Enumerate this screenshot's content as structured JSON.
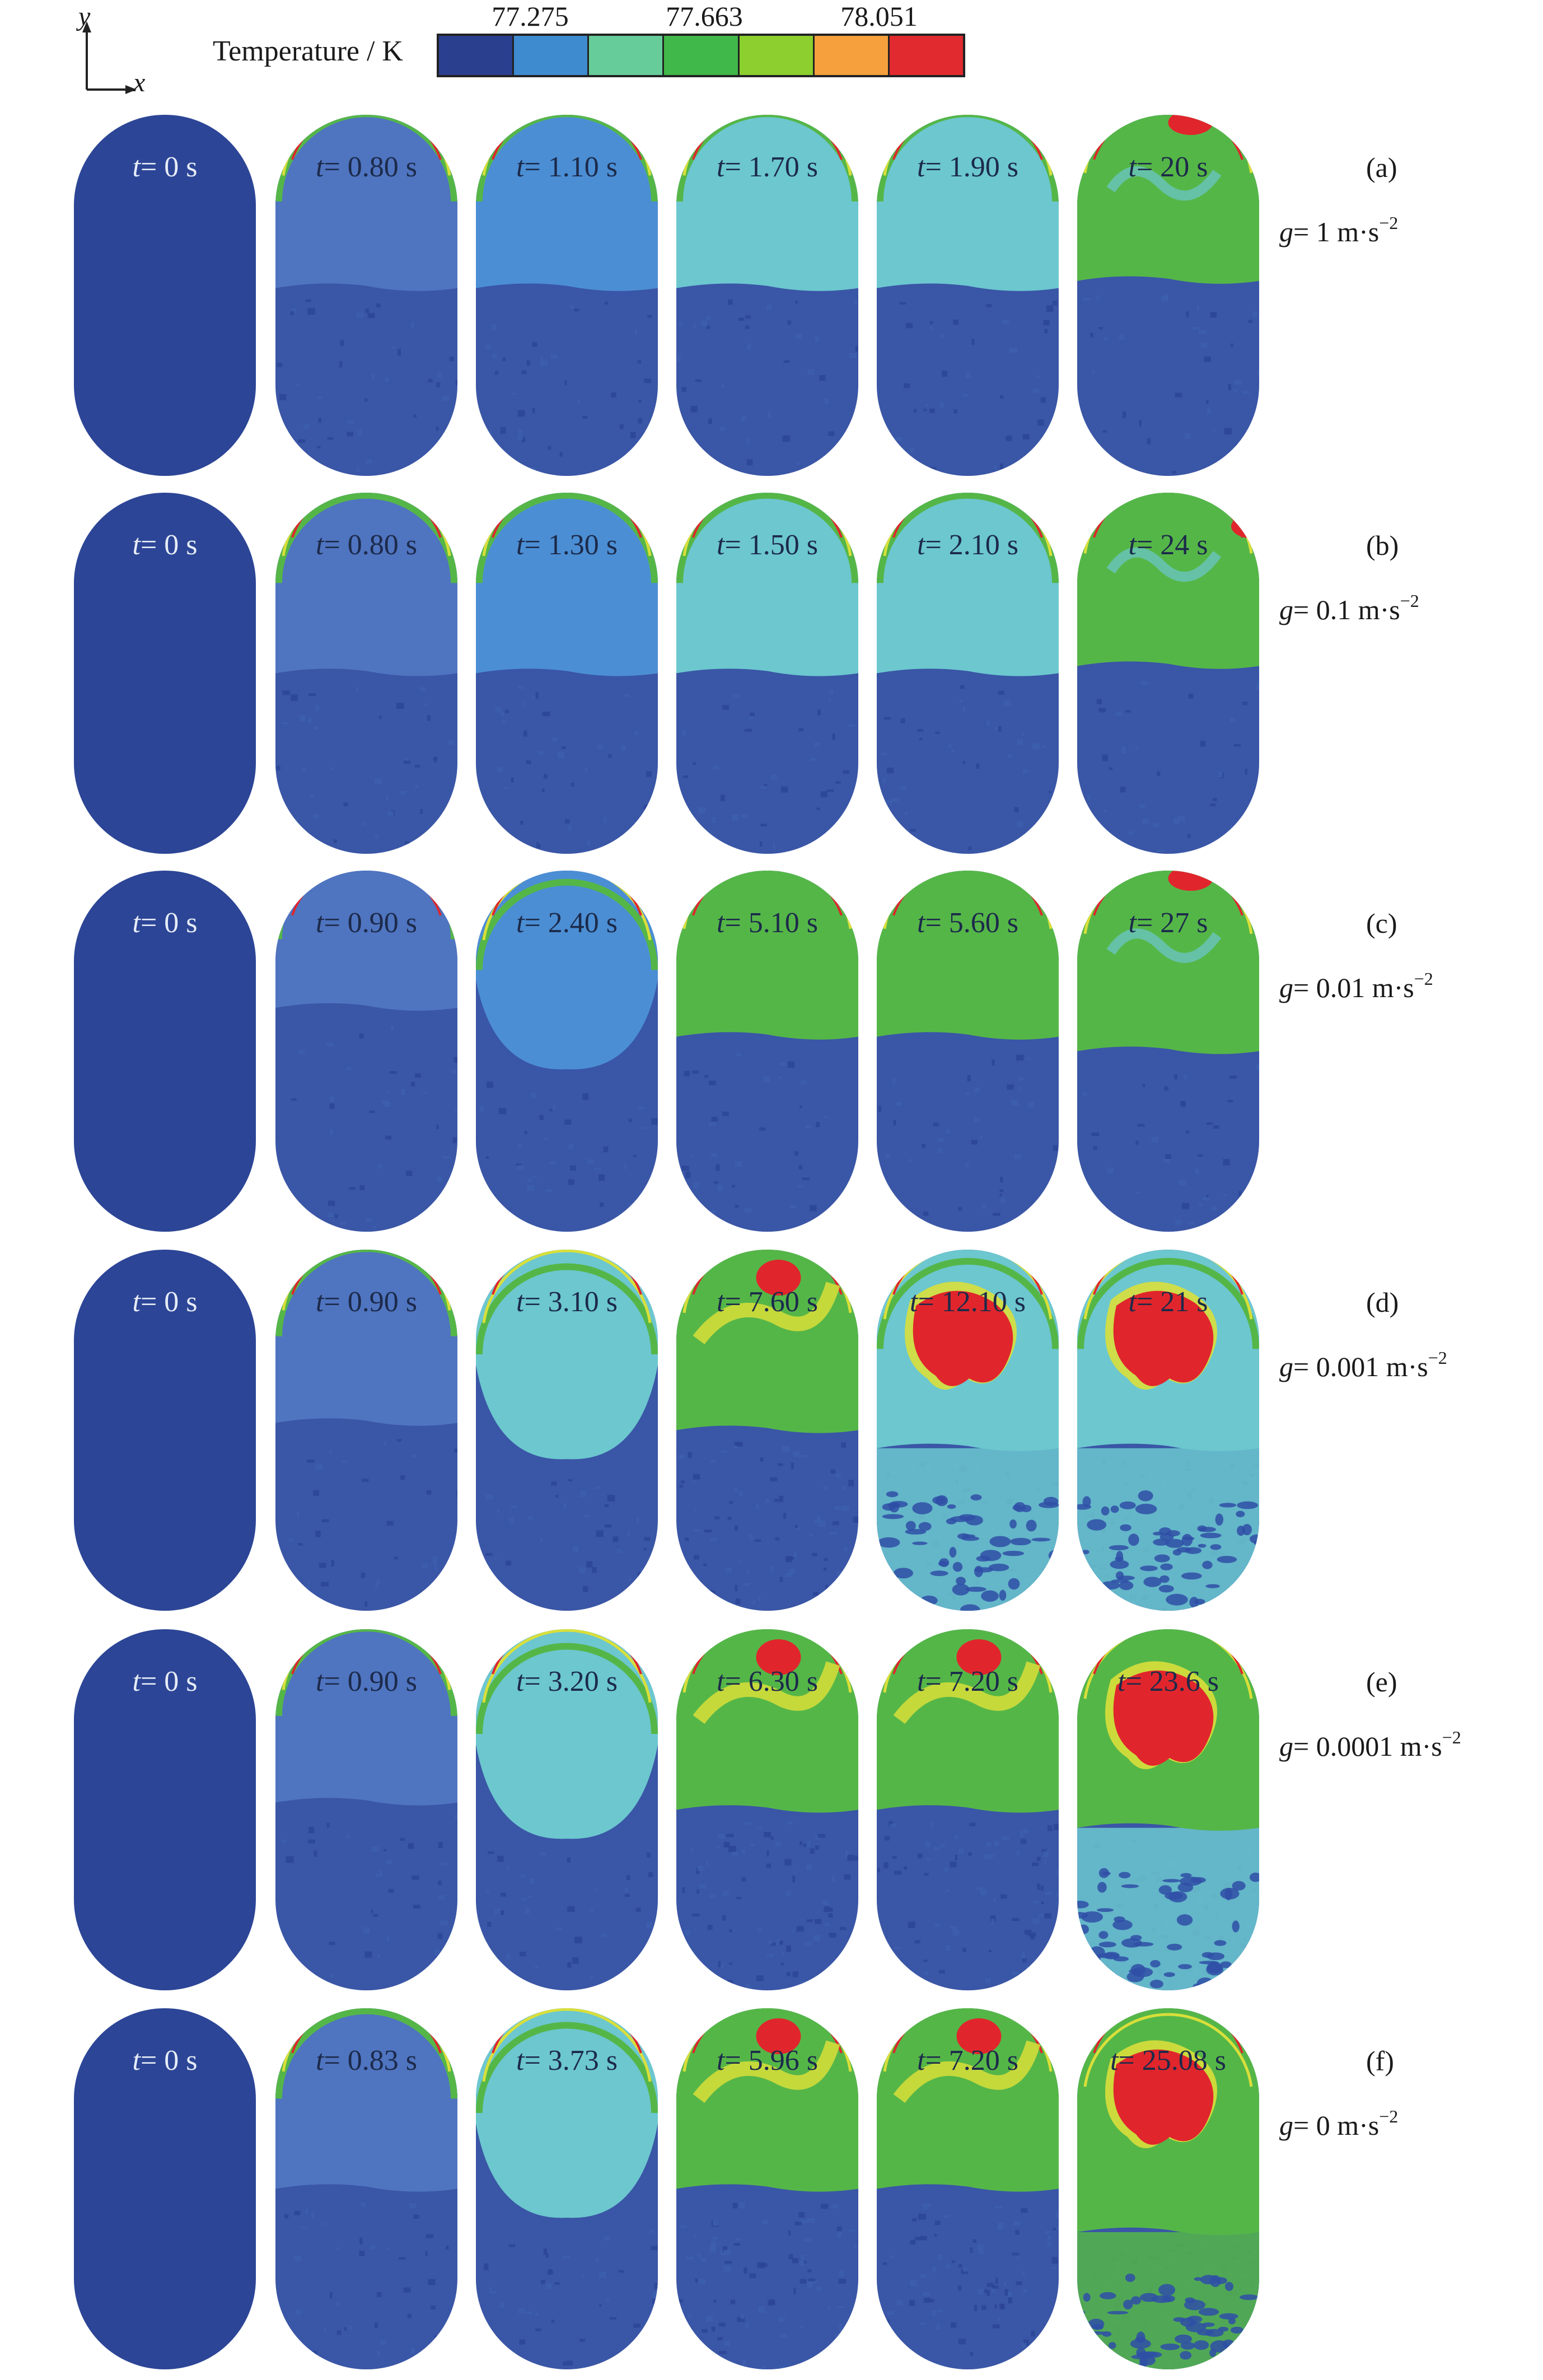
{
  "axes": {
    "y_label": "y",
    "x_label": "x"
  },
  "legend": {
    "title": "Temperature / K",
    "ticks": [
      "77.275",
      "77.663",
      "78.051"
    ],
    "colors": [
      "#2b3f8f",
      "#3f8bd0",
      "#66cc99",
      "#41b84a",
      "#8ccf2f",
      "#f5a03c",
      "#e02a2f"
    ]
  },
  "colors": {
    "vapor_dark": "#2c4596",
    "vapor_mid": "#3d5fae",
    "liquid": "#3a56a6",
    "blue_light": "#4b8ed4",
    "cyan": "#6cc7cf",
    "green": "#55b648",
    "yellow": "#d9df3a",
    "red": "#e0262c"
  },
  "panels": [
    {
      "letter": "(a)",
      "g_prefix": "g",
      "g_value": "= 1 m·s",
      "g_exp": "−2",
      "frames": [
        {
          "prefix": "t",
          "value": "= 0 s",
          "state": "initial",
          "upper": "none",
          "interface": 0.48
        },
        {
          "prefix": "t",
          "value": "= 0.80 s",
          "state": "early",
          "upper": "blue",
          "interface": 0.48
        },
        {
          "prefix": "t",
          "value": "= 1.10 s",
          "state": "early",
          "upper": "blue_light",
          "interface": 0.48
        },
        {
          "prefix": "t",
          "value": "= 1.70 s",
          "state": "early",
          "upper": "cyan",
          "interface": 0.48
        },
        {
          "prefix": "t",
          "value": "= 1.90 s",
          "state": "early",
          "upper": "cyan",
          "interface": 0.48
        },
        {
          "prefix": "t",
          "value": "= 20 s",
          "state": "late",
          "upper": "green",
          "interface": 0.46
        }
      ]
    },
    {
      "letter": "(b)",
      "g_prefix": "g",
      "g_value": "= 0.1 m·s",
      "g_exp": "−2",
      "frames": [
        {
          "prefix": "t",
          "value": "= 0 s",
          "state": "initial",
          "upper": "none",
          "interface": 0.48
        },
        {
          "prefix": "t",
          "value": "= 0.80 s",
          "state": "early",
          "upper": "blue",
          "interface": 0.5
        },
        {
          "prefix": "t",
          "value": "= 1.30 s",
          "state": "early",
          "upper": "blue_light",
          "interface": 0.5
        },
        {
          "prefix": "t",
          "value": "= 1.50 s",
          "state": "early",
          "upper": "cyan",
          "interface": 0.5
        },
        {
          "prefix": "t",
          "value": "= 2.10 s",
          "state": "early",
          "upper": "cyan",
          "interface": 0.5
        },
        {
          "prefix": "t",
          "value": "= 24 s",
          "state": "late",
          "upper": "green",
          "interface": 0.48
        }
      ]
    },
    {
      "letter": "(c)",
      "g_prefix": "g",
      "g_value": "= 0.01 m·s",
      "g_exp": "−2",
      "frames": [
        {
          "prefix": "t",
          "value": "= 0 s",
          "state": "initial",
          "upper": "none",
          "interface": 0.48
        },
        {
          "prefix": "t",
          "value": "= 0.90 s",
          "state": "early",
          "upper": "blue",
          "interface": 0.38
        },
        {
          "prefix": "t",
          "value": "= 2.40 s",
          "state": "bulge",
          "upper": "blue_light",
          "interface": 0.55
        },
        {
          "prefix": "t",
          "value": "= 5.10 s",
          "state": "early",
          "upper": "green",
          "interface": 0.46
        },
        {
          "prefix": "t",
          "value": "= 5.60 s",
          "state": "early",
          "upper": "green",
          "interface": 0.46
        },
        {
          "prefix": "t",
          "value": "= 27 s",
          "state": "late",
          "upper": "green",
          "interface": 0.5
        }
      ]
    },
    {
      "letter": "(d)",
      "g_prefix": "g",
      "g_value": "= 0.001 m·s",
      "g_exp": "−2",
      "frames": [
        {
          "prefix": "t",
          "value": "= 0 s",
          "state": "initial",
          "upper": "none",
          "interface": 0.48
        },
        {
          "prefix": "t",
          "value": "= 0.90 s",
          "state": "early",
          "upper": "blue",
          "interface": 0.48
        },
        {
          "prefix": "t",
          "value": "= 3.10 s",
          "state": "bulge",
          "upper": "cyan",
          "interface": 0.58
        },
        {
          "prefix": "t",
          "value": "= 7.60 s",
          "state": "hot",
          "upper": "green",
          "interface": 0.5
        },
        {
          "prefix": "t",
          "value": "= 12.10 s",
          "state": "veryhot",
          "upper": "cyan",
          "interface": 0.55
        },
        {
          "prefix": "t",
          "value": "= 21 s",
          "state": "veryhot",
          "upper": "cyan",
          "interface": 0.55
        }
      ]
    },
    {
      "letter": "(e)",
      "g_prefix": "g",
      "g_value": "= 0.0001 m·s",
      "g_exp": "−2",
      "frames": [
        {
          "prefix": "t",
          "value": "= 0 s",
          "state": "initial",
          "upper": "none",
          "interface": 0.48
        },
        {
          "prefix": "t",
          "value": "= 0.90 s",
          "state": "early",
          "upper": "blue",
          "interface": 0.48
        },
        {
          "prefix": "t",
          "value": "= 3.20 s",
          "state": "bulge",
          "upper": "cyan",
          "interface": 0.58
        },
        {
          "prefix": "t",
          "value": "= 6.30 s",
          "state": "hot",
          "upper": "green",
          "interface": 0.5
        },
        {
          "prefix": "t",
          "value": "= 7.20 s",
          "state": "hot",
          "upper": "green",
          "interface": 0.5
        },
        {
          "prefix": "t",
          "value": "= 23.6 s",
          "state": "veryhot",
          "upper": "green",
          "interface": 0.55
        }
      ]
    },
    {
      "letter": "(f)",
      "g_prefix": "g",
      "g_value": "= 0 m·s",
      "g_exp": "−2",
      "frames": [
        {
          "prefix": "t",
          "value": "= 0 s",
          "state": "initial",
          "upper": "none",
          "interface": 0.48
        },
        {
          "prefix": "t",
          "value": "= 0.83 s",
          "state": "early",
          "upper": "blue",
          "interface": 0.5
        },
        {
          "prefix": "t",
          "value": "= 3.73 s",
          "state": "bulge",
          "upper": "cyan",
          "interface": 0.58
        },
        {
          "prefix": "t",
          "value": "= 5.96 s",
          "state": "hot",
          "upper": "green",
          "interface": 0.5
        },
        {
          "prefix": "t",
          "value": "= 7.20 s",
          "state": "hot",
          "upper": "green",
          "interface": 0.5
        },
        {
          "prefix": "t",
          "value": "= 25.08 s",
          "state": "veryhot",
          "upper": "green",
          "interface": 0.62
        }
      ]
    }
  ]
}
